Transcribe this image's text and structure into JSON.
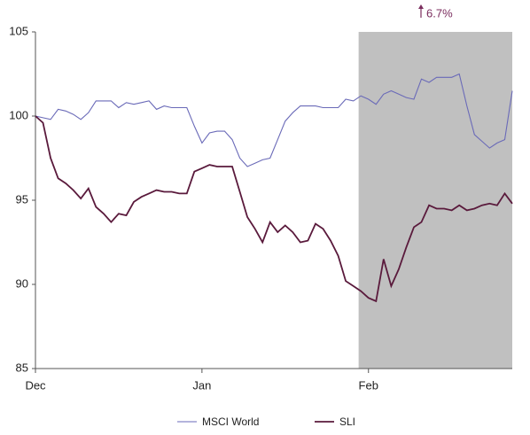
{
  "chart_data": {
    "type": "line",
    "categories": [
      "Dec",
      null,
      null,
      null,
      null,
      null,
      null,
      null,
      null,
      null,
      null,
      null,
      null,
      null,
      null,
      null,
      null,
      null,
      null,
      null,
      null,
      null,
      "Jan",
      null,
      null,
      null,
      null,
      null,
      null,
      null,
      null,
      null,
      null,
      null,
      null,
      null,
      null,
      null,
      null,
      null,
      null,
      null,
      null,
      null,
      "Feb",
      null,
      null,
      null,
      null,
      null,
      null,
      null,
      null,
      null,
      null,
      null,
      null,
      null,
      null,
      null,
      null,
      null,
      null,
      null
    ],
    "series": [
      {
        "name": "MSCI World",
        "color": "#6a6ab8",
        "values": [
          100,
          99.9,
          99.8,
          100.4,
          100.3,
          100.1,
          99.8,
          100.2,
          100.9,
          100.9,
          100.9,
          100.5,
          100.8,
          100.7,
          100.8,
          100.9,
          100.4,
          100.6,
          100.5,
          100.5,
          100.5,
          99.4,
          98.4,
          99.0,
          99.1,
          99.1,
          98.6,
          97.5,
          97.0,
          97.2,
          97.4,
          97.5,
          98.6,
          99.7,
          100.2,
          100.6,
          100.6,
          100.6,
          100.5,
          100.5,
          100.5,
          101.0,
          100.9,
          101.2,
          101.0,
          100.7,
          101.3,
          101.5,
          101.3,
          101.1,
          101.0,
          102.2,
          102.0,
          102.3,
          102.3,
          102.3,
          102.5,
          100.6,
          98.9,
          98.5,
          98.1,
          98.4,
          98.6,
          101.5
        ]
      },
      {
        "name": "SLI",
        "color": "#5a1a3c",
        "values": [
          100,
          99.6,
          97.5,
          96.3,
          96.0,
          95.6,
          95.1,
          95.7,
          94.6,
          94.2,
          93.7,
          94.2,
          94.1,
          94.9,
          95.2,
          95.4,
          95.6,
          95.5,
          95.5,
          95.4,
          95.4,
          96.7,
          96.9,
          97.1,
          97.0,
          97.0,
          97.0,
          95.5,
          94.0,
          93.3,
          92.5,
          93.7,
          93.1,
          93.5,
          93.1,
          92.5,
          92.6,
          93.6,
          93.3,
          92.6,
          91.7,
          90.2,
          89.9,
          89.6,
          89.2,
          89.0,
          91.5,
          89.9,
          90.9,
          92.2,
          93.4,
          93.7,
          94.7,
          94.5,
          94.5,
          94.4,
          94.7,
          94.4,
          94.5,
          94.7,
          94.8,
          94.7,
          95.4,
          94.8
        ]
      }
    ],
    "ylim": [
      85,
      105
    ],
    "yticks": [
      85,
      90,
      95,
      100,
      105
    ],
    "grid": false,
    "legend": "bottom",
    "highlight": {
      "from": 42.7,
      "to": 63,
      "color": "#c0c0c0"
    },
    "annotation": {
      "text": "6.7%",
      "color": "#7b2d5e"
    }
  }
}
